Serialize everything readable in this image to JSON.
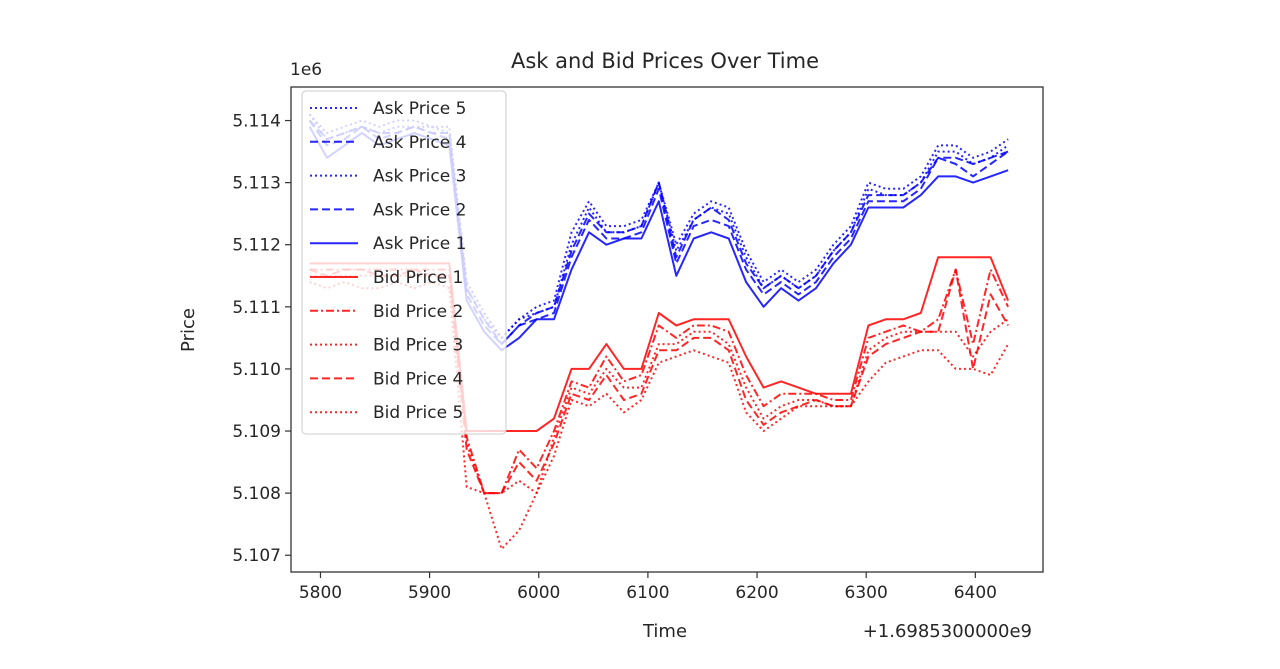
{
  "chart_data": {
    "type": "line",
    "title": "Ask and Bid Prices Over Time",
    "xlabel": "Time",
    "ylabel": "Price",
    "x_offset_text": "+1.6985300000e9",
    "y_multiplier_text": "1e6",
    "xlim": [
      5773,
      6462
    ],
    "ylim": [
      5.10673,
      5.11454
    ],
    "x_ticks": [
      5800,
      5900,
      6000,
      6100,
      6200,
      6300,
      6400
    ],
    "y_ticks": [
      5.107,
      5.108,
      5.109,
      5.11,
      5.111,
      5.112,
      5.113,
      5.114
    ],
    "y_tick_labels": [
      "5.107",
      "5.108",
      "5.109",
      "5.110",
      "5.111",
      "5.112",
      "5.113",
      "5.114"
    ],
    "grid": false,
    "legend_placement": "upper-left",
    "x": [
      5790,
      5806,
      5822,
      5838,
      5854,
      5870,
      5886,
      5902,
      5918,
      5934,
      5950,
      5966,
      5982,
      5998,
      6014,
      6030,
      6046,
      6062,
      6078,
      6094,
      6110,
      6126,
      6142,
      6158,
      6174,
      6190,
      6206,
      6222,
      6238,
      6254,
      6270,
      6286,
      6302,
      6318,
      6334,
      6350,
      6366,
      6382,
      6398,
      6414,
      6430
    ],
    "series": [
      {
        "name": "Ask Price 5",
        "color": "#0000ff",
        "style": "dotted",
        "values": [
          5.1141,
          5.1138,
          5.1139,
          5.114,
          5.1139,
          5.114,
          5.114,
          5.1139,
          5.1139,
          5.1114,
          5.1109,
          5.1105,
          5.1108,
          5.111,
          5.1111,
          5.1122,
          5.1127,
          5.1123,
          5.1123,
          5.1124,
          5.113,
          5.112,
          5.1125,
          5.1127,
          5.1126,
          5.1119,
          5.1114,
          5.1116,
          5.1114,
          5.1116,
          5.112,
          5.1123,
          5.113,
          5.1129,
          5.1129,
          5.1131,
          5.1136,
          5.1136,
          5.1134,
          5.1135,
          5.1137
        ]
      },
      {
        "name": "Ask Price 4",
        "color": "#0000ff",
        "style": "dashed",
        "values": [
          5.114,
          5.1137,
          5.1138,
          5.1139,
          5.1138,
          5.1138,
          5.1139,
          5.1138,
          5.1138,
          5.1113,
          5.1108,
          5.1104,
          5.1107,
          5.1109,
          5.111,
          5.1119,
          5.1125,
          5.1122,
          5.1122,
          5.1123,
          5.113,
          5.1118,
          5.1124,
          5.1126,
          5.1124,
          5.1117,
          5.1113,
          5.1115,
          5.1113,
          5.1115,
          5.1119,
          5.1122,
          5.1128,
          5.1128,
          5.1128,
          5.113,
          5.1134,
          5.1134,
          5.1133,
          5.1134,
          5.1135
        ]
      },
      {
        "name": "Ask Price 3",
        "color": "#0000ff",
        "style": "dotted",
        "values": [
          5.1141,
          5.1137,
          5.1138,
          5.1139,
          5.1138,
          5.1139,
          5.1139,
          5.1139,
          5.1138,
          5.1113,
          5.1108,
          5.1105,
          5.1108,
          5.1109,
          5.111,
          5.112,
          5.1126,
          5.1122,
          5.1122,
          5.1123,
          5.113,
          5.1119,
          5.1124,
          5.1126,
          5.1125,
          5.1118,
          5.1113,
          5.1115,
          5.1113,
          5.1115,
          5.1119,
          5.1122,
          5.1129,
          5.1128,
          5.1128,
          5.113,
          5.1135,
          5.1135,
          5.1133,
          5.1134,
          5.1136
        ]
      },
      {
        "name": "Ask Price 2",
        "color": "#0000ff",
        "style": "dashed",
        "values": [
          5.114,
          5.1136,
          5.1137,
          5.1139,
          5.1137,
          5.1138,
          5.1139,
          5.1138,
          5.1137,
          5.1112,
          5.1107,
          5.1104,
          5.1107,
          5.1108,
          5.1109,
          5.1118,
          5.1124,
          5.1121,
          5.1121,
          5.1122,
          5.1129,
          5.1117,
          5.1123,
          5.1124,
          5.1123,
          5.1116,
          5.1112,
          5.1114,
          5.1112,
          5.1114,
          5.1118,
          5.1121,
          5.1127,
          5.1127,
          5.1127,
          5.1129,
          5.1134,
          5.1133,
          5.1131,
          5.1133,
          5.1135
        ]
      },
      {
        "name": "Ask Price 1",
        "color": "#0000ff",
        "style": "solid",
        "values": [
          5.1139,
          5.1134,
          5.1136,
          5.1138,
          5.1136,
          5.1137,
          5.1138,
          5.1137,
          5.1136,
          5.1111,
          5.1106,
          5.1103,
          5.1105,
          5.1108,
          5.1108,
          5.1116,
          5.1122,
          5.112,
          5.1121,
          5.1121,
          5.1127,
          5.1115,
          5.1121,
          5.1122,
          5.1121,
          5.1114,
          5.111,
          5.1113,
          5.1111,
          5.1113,
          5.1117,
          5.112,
          5.1126,
          5.1126,
          5.1126,
          5.1128,
          5.1131,
          5.1131,
          5.113,
          5.1131,
          5.1132
        ]
      },
      {
        "name": "Bid Price 1",
        "color": "#ff0000",
        "style": "solid",
        "values": [
          5.1117,
          5.1117,
          5.1117,
          5.1117,
          5.1117,
          5.1117,
          5.1117,
          5.1117,
          5.1117,
          5.109,
          5.109,
          5.109,
          5.109,
          5.109,
          5.1092,
          5.11,
          5.11,
          5.1104,
          5.11,
          5.11,
          5.1109,
          5.1107,
          5.1108,
          5.1108,
          5.1108,
          5.1102,
          5.1097,
          5.1098,
          5.1097,
          5.1096,
          5.1096,
          5.1096,
          5.1107,
          5.1108,
          5.1108,
          5.1109,
          5.1118,
          5.1118,
          5.1118,
          5.1118,
          5.1111
        ]
      },
      {
        "name": "Bid Price 2",
        "color": "#ff0000",
        "style": "dashdot",
        "values": [
          5.1116,
          5.1116,
          5.1116,
          5.1116,
          5.1116,
          5.1116,
          5.1116,
          5.1116,
          5.1116,
          5.1089,
          5.108,
          5.108,
          5.1087,
          5.1084,
          5.109,
          5.1098,
          5.1097,
          5.1102,
          5.1098,
          5.1099,
          5.1107,
          5.1105,
          5.1107,
          5.1107,
          5.1106,
          5.1099,
          5.1094,
          5.1096,
          5.1096,
          5.1096,
          5.1095,
          5.1095,
          5.1105,
          5.1106,
          5.1107,
          5.1106,
          5.1108,
          5.1116,
          5.1104,
          5.1116,
          5.111
        ]
      },
      {
        "name": "Bid Price 3",
        "color": "#ff0000",
        "style": "dotted",
        "values": [
          5.1115,
          5.1115,
          5.1115,
          5.1115,
          5.1115,
          5.1115,
          5.1115,
          5.1115,
          5.1115,
          5.1088,
          5.108,
          5.108,
          5.1082,
          5.108,
          5.1089,
          5.1097,
          5.1096,
          5.11,
          5.1097,
          5.1097,
          5.1104,
          5.1104,
          5.1106,
          5.1106,
          5.1104,
          5.1097,
          5.1092,
          5.1094,
          5.1095,
          5.1095,
          5.1094,
          5.1094,
          5.1103,
          5.1105,
          5.1106,
          5.1106,
          5.1106,
          5.1106,
          5.1102,
          5.1106,
          5.1108
        ]
      },
      {
        "name": "Bid Price 4",
        "color": "#ff0000",
        "style": "dashed",
        "values": [
          5.1116,
          5.1115,
          5.1116,
          5.1116,
          5.1115,
          5.1115,
          5.1116,
          5.1115,
          5.1115,
          5.1087,
          5.108,
          5.108,
          5.1085,
          5.1082,
          5.1088,
          5.1096,
          5.1095,
          5.1099,
          5.1095,
          5.1096,
          5.1103,
          5.1103,
          5.1105,
          5.1105,
          5.1103,
          5.1095,
          5.1091,
          5.1093,
          5.1094,
          5.1095,
          5.1094,
          5.1094,
          5.1102,
          5.1104,
          5.1105,
          5.1106,
          5.1106,
          5.1116,
          5.11,
          5.1112,
          5.1107
        ]
      },
      {
        "name": "Bid Price 5",
        "color": "#ff0000",
        "style": "dotted",
        "values": [
          5.1114,
          5.1113,
          5.1114,
          5.1113,
          5.1113,
          5.1114,
          5.1113,
          5.1114,
          5.1113,
          5.1081,
          5.108,
          5.1071,
          5.1074,
          5.108,
          5.1086,
          5.1095,
          5.1094,
          5.1096,
          5.1093,
          5.1095,
          5.1101,
          5.1102,
          5.1103,
          5.1102,
          5.1101,
          5.1093,
          5.109,
          5.1092,
          5.1094,
          5.1094,
          5.1094,
          5.1094,
          5.1098,
          5.1101,
          5.1102,
          5.1103,
          5.1103,
          5.11,
          5.11,
          5.1099,
          5.1104
        ]
      }
    ]
  }
}
